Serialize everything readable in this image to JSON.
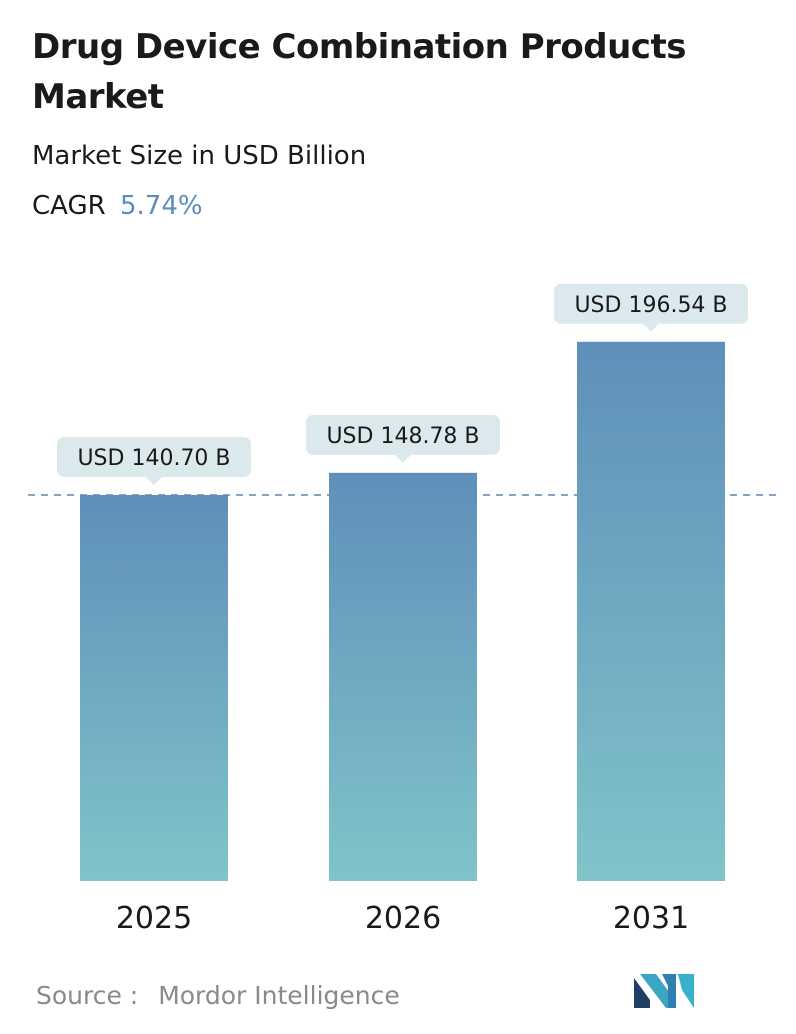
{
  "header": {
    "title": "Drug Device Combination Products Market",
    "subtitle": "Market Size in USD Billion",
    "cagr_label": "CAGR",
    "cagr_value": "5.74%"
  },
  "footer": {
    "source_label": "Source :",
    "source_name": "Mordor Intelligence",
    "logo": "mordor-intelligence-logo"
  },
  "colors": {
    "bar_top": "#5f8fb9",
    "bar_bottom": "#80c4ca",
    "callout_bg": "#dce9ec",
    "reference_line": "#5a86ad",
    "cagr_accent": "#5b8db8"
  },
  "chart_data": {
    "type": "bar",
    "categories": [
      "2025",
      "2026",
      "2031"
    ],
    "values": [
      140.7,
      148.78,
      196.54
    ],
    "value_labels": [
      "USD 140.70 B",
      "USD 148.78 B",
      "USD 196.54 B"
    ],
    "reference_line": {
      "value": 140.7,
      "style": "dashed"
    },
    "ylim": [
      0,
      200
    ],
    "grid": false,
    "legend": "none"
  }
}
